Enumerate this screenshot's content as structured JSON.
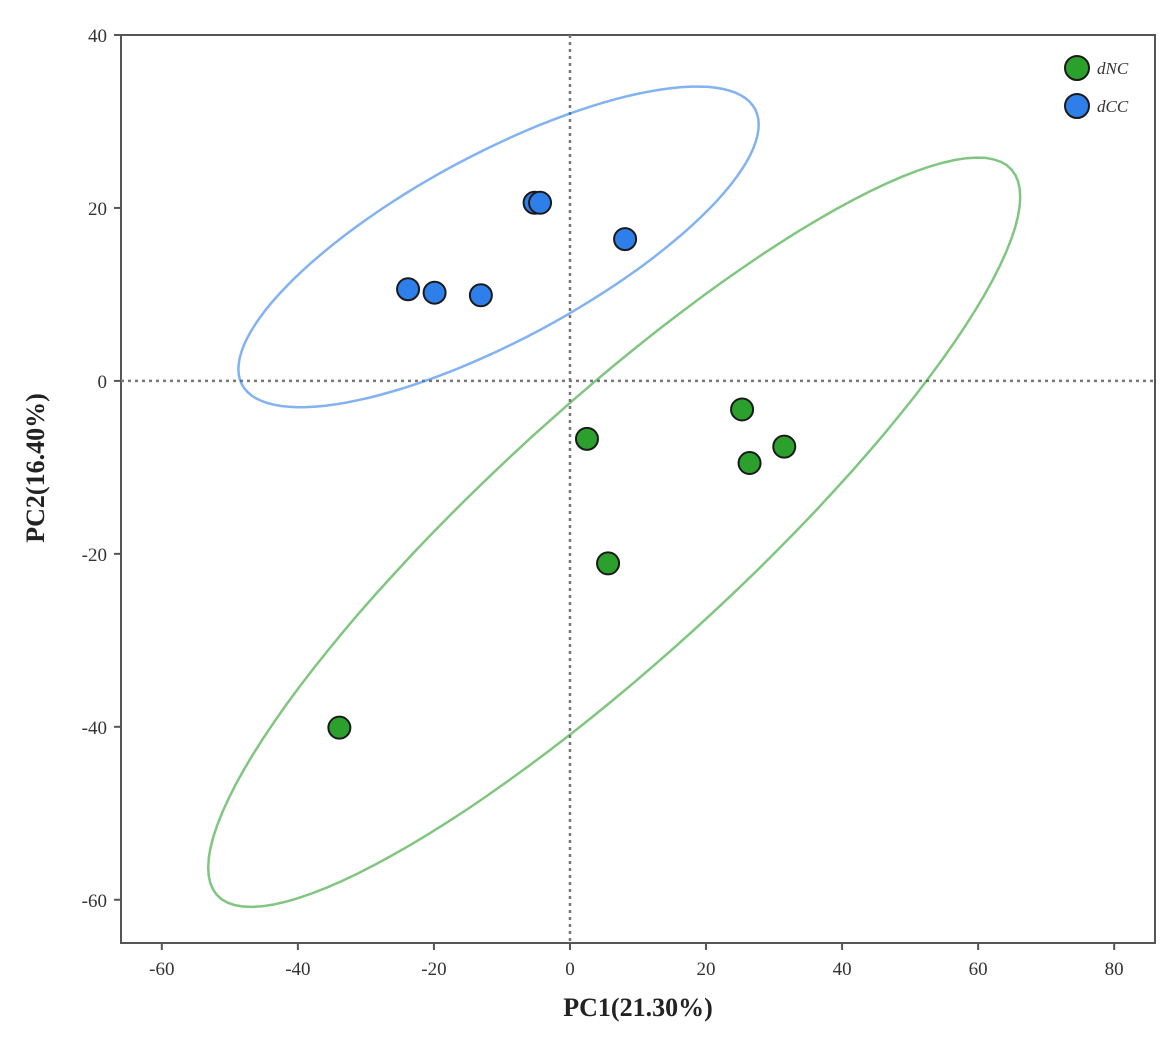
{
  "chart_data": {
    "type": "scatter",
    "xlabel": "PC1(21.30%)",
    "ylabel": "PC2(16.40%)",
    "xlim": [
      -66,
      86
    ],
    "ylim": [
      -65,
      40
    ],
    "xticks": [
      -60,
      -40,
      -20,
      0,
      20,
      40,
      60,
      80
    ],
    "yticks": [
      40,
      20,
      0,
      -20,
      -40,
      -60
    ],
    "reference_lines": {
      "x": 0,
      "y": 0,
      "style": "dotted"
    },
    "grid": false,
    "legend_position": "top-right",
    "series": [
      {
        "name": "dNC",
        "color": "#2ca02c",
        "points": [
          {
            "x": 2.5,
            "y": -6.7
          },
          {
            "x": 25.3,
            "y": -3.3
          },
          {
            "x": 26.4,
            "y": -9.5
          },
          {
            "x": 31.5,
            "y": -7.6
          },
          {
            "x": 5.6,
            "y": -21.1
          },
          {
            "x": -33.9,
            "y": -40.1
          }
        ],
        "ellipse": {
          "cx": 6.5,
          "cy": -17.5,
          "rx": 72,
          "ry": 16,
          "angle_deg": 35
        }
      },
      {
        "name": "dCC",
        "color": "#2f7fea",
        "points": [
          {
            "x": -5.2,
            "y": 20.6
          },
          {
            "x": -4.4,
            "y": 20.6
          },
          {
            "x": 8.1,
            "y": 16.4
          },
          {
            "x": -23.8,
            "y": 10.6
          },
          {
            "x": -19.9,
            "y": 10.2
          },
          {
            "x": -13.1,
            "y": 9.9
          }
        ],
        "ellipse": {
          "cx": -10.5,
          "cy": 15.5,
          "rx": 41,
          "ry": 11.2,
          "angle_deg": 22
        }
      }
    ]
  }
}
